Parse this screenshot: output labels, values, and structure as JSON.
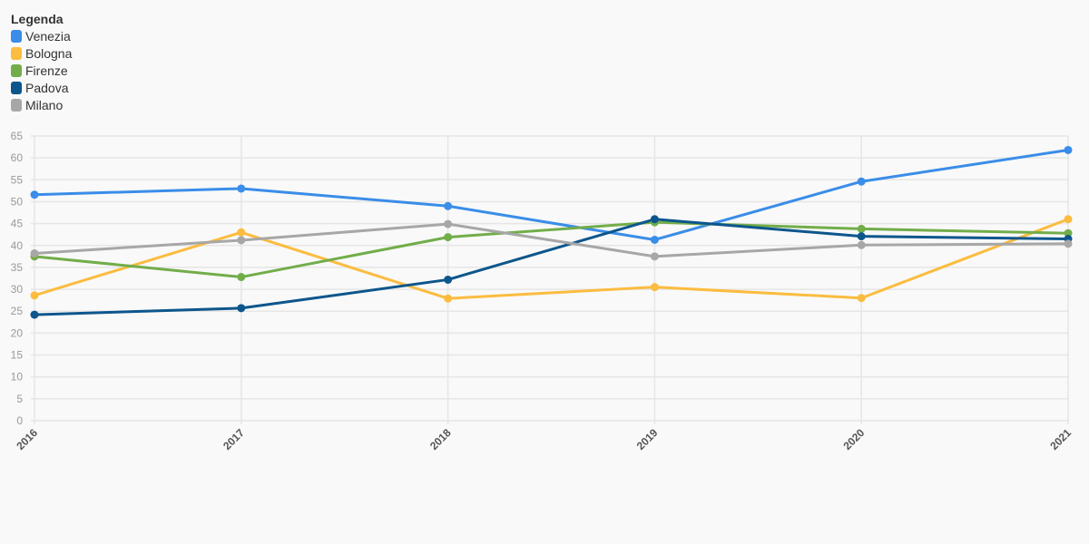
{
  "legend": {
    "title": "Legenda"
  },
  "chart_data": {
    "type": "line",
    "title": "",
    "xlabel": "",
    "ylabel": "",
    "categories": [
      "2016",
      "2017",
      "2018",
      "2019",
      "2020",
      "2021"
    ],
    "ylim": [
      0,
      65
    ],
    "yticks": [
      0,
      5,
      10,
      15,
      20,
      25,
      30,
      35,
      40,
      45,
      50,
      55,
      60,
      65
    ],
    "grid": true,
    "legend_position": "top-left",
    "series": [
      {
        "name": "Venezia",
        "color": "#3a8de8",
        "values": [
          51.6,
          53.0,
          49.0,
          41.3,
          54.6,
          61.8
        ]
      },
      {
        "name": "Bologna",
        "color": "#fbbc3f",
        "values": [
          28.6,
          43.0,
          27.9,
          30.5,
          28.0,
          46.0
        ]
      },
      {
        "name": "Firenze",
        "color": "#72ad4a",
        "values": [
          37.5,
          32.8,
          41.9,
          45.3,
          43.8,
          42.8
        ]
      },
      {
        "name": "Padova",
        "color": "#0d568c",
        "values": [
          24.2,
          25.7,
          32.2,
          46.0,
          42.1,
          41.5
        ]
      },
      {
        "name": "Milano",
        "color": "#a7a7a7",
        "values": [
          38.2,
          41.2,
          44.9,
          37.5,
          40.1,
          40.4
        ]
      }
    ]
  }
}
